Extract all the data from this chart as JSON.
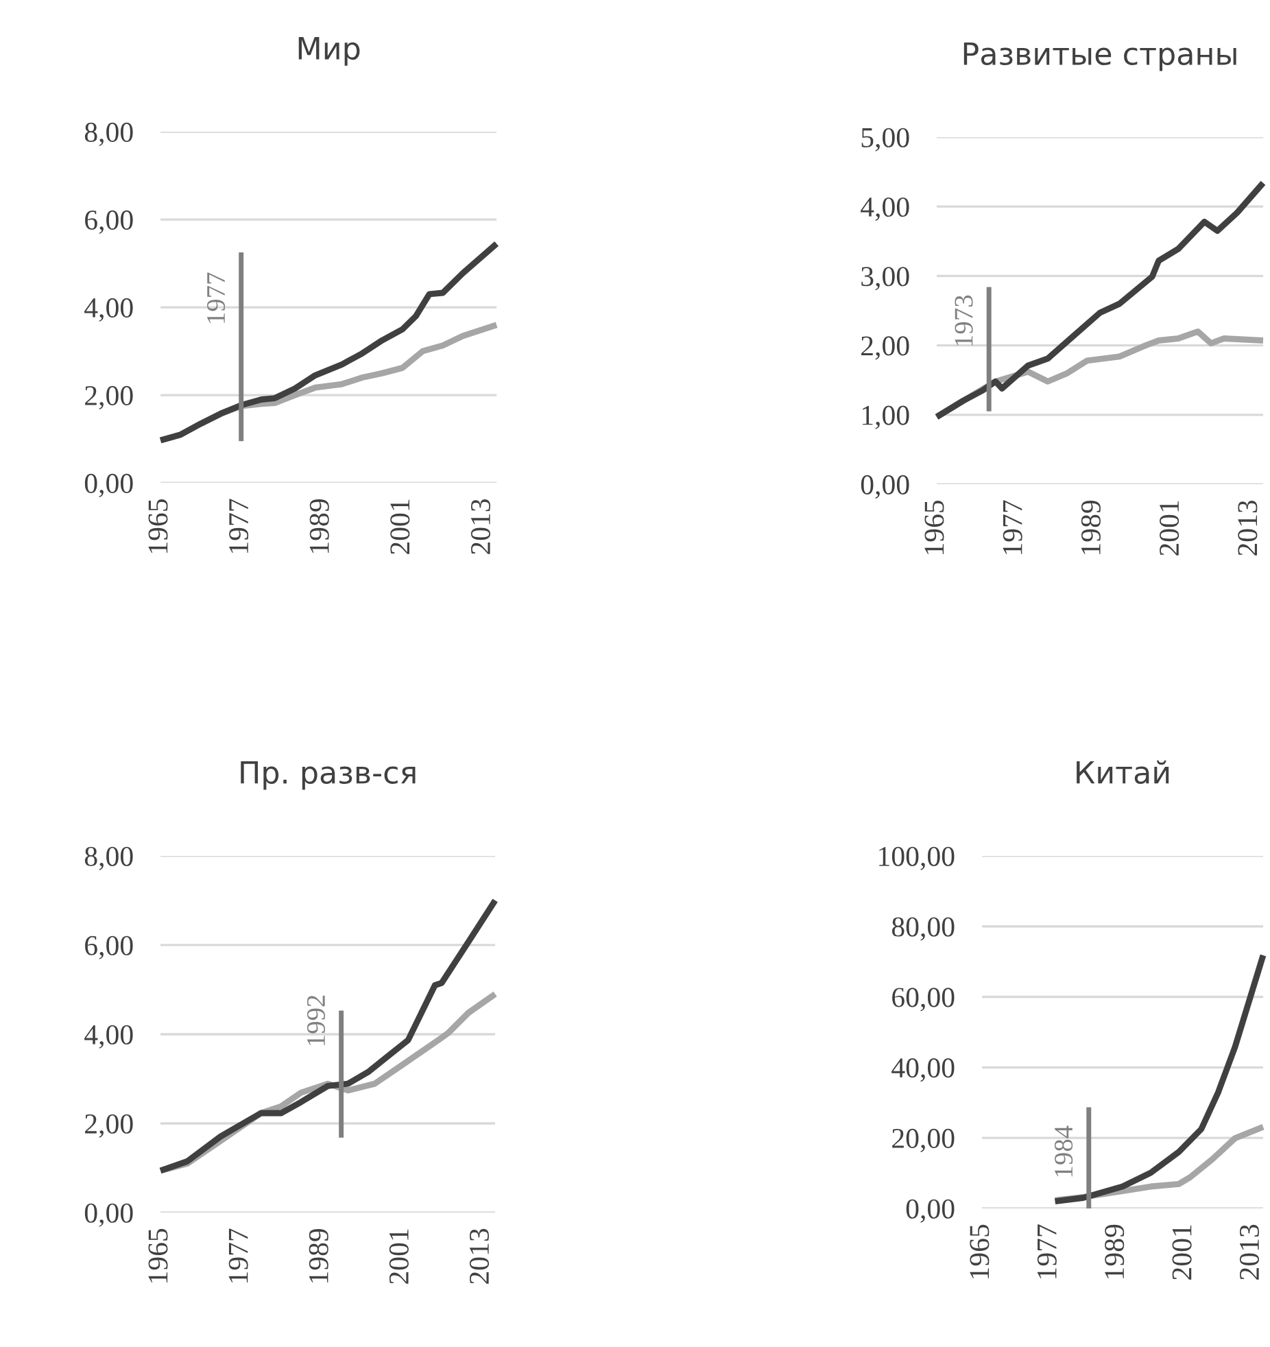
{
  "chart_data": [
    {
      "type": "line",
      "title": "Мир",
      "xlim": [
        1965,
        2015
      ],
      "xticks": [
        1965,
        1977,
        1989,
        2001,
        2013
      ],
      "ylim": [
        0,
        8
      ],
      "yticks": [
        {
          "value": 0,
          "label": "0,00"
        },
        {
          "value": 2,
          "label": "2,00"
        },
        {
          "value": 4,
          "label": "4,00"
        },
        {
          "value": 6,
          "label": "6,00"
        },
        {
          "value": 8,
          "label": "8,00"
        }
      ],
      "grid": "y",
      "series": [
        {
          "color": "#a6a6a6",
          "x": [
            1965,
            1968,
            1971,
            1974,
            1977,
            1980,
            1982,
            1985,
            1988,
            1992,
            1995,
            1998,
            2001,
            2004,
            2007,
            2010,
            2015
          ],
          "values": [
            0.97,
            1.1,
            1.35,
            1.58,
            1.75,
            1.8,
            1.82,
            2.0,
            2.17,
            2.25,
            2.4,
            2.5,
            2.62,
            3.0,
            3.13,
            3.35,
            3.6
          ]
        },
        {
          "color": "#404040",
          "x": [
            1965,
            1968,
            1971,
            1974,
            1977,
            1980,
            1982,
            1985,
            1988,
            1992,
            1995,
            1998,
            2001,
            2003,
            2005,
            2007,
            2010,
            2015
          ],
          "values": [
            0.97,
            1.1,
            1.35,
            1.58,
            1.77,
            1.9,
            1.93,
            2.15,
            2.45,
            2.7,
            2.95,
            3.25,
            3.5,
            3.8,
            4.3,
            4.33,
            4.78,
            5.45
          ]
        },
        {
          "color": "#7f7f7f",
          "x": [
            1977,
            1977
          ],
          "values": [
            0.95,
            5.25
          ]
        }
      ],
      "annotations": [
        {
          "text": "1977",
          "x": 1977,
          "y": 4.2
        }
      ]
    },
    {
      "type": "line",
      "title": "Развитые страны",
      "xlim": [
        1965,
        2015
      ],
      "xticks": [
        1965,
        1977,
        1989,
        2001,
        2013
      ],
      "ylim": [
        0,
        5
      ],
      "yticks": [
        {
          "value": 0,
          "label": "0,00"
        },
        {
          "value": 1,
          "label": "1,00"
        },
        {
          "value": 2,
          "label": "2,00"
        },
        {
          "value": 3,
          "label": "3,00"
        },
        {
          "value": 4,
          "label": "4,00"
        },
        {
          "value": 5,
          "label": "5,00"
        }
      ],
      "grid": "y",
      "series": [
        {
          "color": "#a6a6a6",
          "x": [
            1965,
            1969,
            1974,
            1979,
            1982,
            1985,
            1988,
            1993,
            1997,
            1999,
            2002,
            2005,
            2007,
            2009,
            2015
          ],
          "values": [
            0.97,
            1.2,
            1.48,
            1.62,
            1.48,
            1.6,
            1.78,
            1.84,
            2.0,
            2.07,
            2.1,
            2.2,
            2.03,
            2.1,
            2.07
          ]
        },
        {
          "color": "#404040",
          "x": [
            1965,
            1969,
            1972,
            1974,
            1975,
            1979,
            1982,
            1986,
            1990,
            1993,
            1998,
            1999,
            2002,
            2006,
            2008,
            2011,
            2015
          ],
          "values": [
            0.97,
            1.2,
            1.35,
            1.48,
            1.38,
            1.71,
            1.81,
            2.14,
            2.47,
            2.6,
            2.99,
            3.22,
            3.39,
            3.78,
            3.65,
            3.91,
            4.34
          ]
        },
        {
          "color": "#7f7f7f",
          "x": [
            1973,
            1973
          ],
          "values": [
            1.05,
            2.84
          ]
        }
      ],
      "annotations": [
        {
          "text": "1973",
          "x": 1973,
          "y": 2.35
        }
      ]
    },
    {
      "type": "line",
      "title": "Пр. разв-ся",
      "xlim": [
        1965,
        2015
      ],
      "xticks": [
        1965,
        1977,
        1989,
        2001,
        2013
      ],
      "ylim": [
        0,
        8
      ],
      "yticks": [
        {
          "value": 0,
          "label": "0,00"
        },
        {
          "value": 2,
          "label": "2,00"
        },
        {
          "value": 4,
          "label": "4,00"
        },
        {
          "value": 6,
          "label": "6,00"
        },
        {
          "value": 8,
          "label": "8,00"
        }
      ],
      "grid": "y",
      "series": [
        {
          "color": "#a6a6a6",
          "x": [
            1965,
            1969,
            1974,
            1980,
            1983,
            1986,
            1990,
            1993,
            1997,
            2001,
            2007,
            2008,
            2011,
            2015
          ],
          "values": [
            0.94,
            1.1,
            1.61,
            2.23,
            2.38,
            2.69,
            2.89,
            2.74,
            2.89,
            3.3,
            3.92,
            4.03,
            4.48,
            4.9
          ]
        },
        {
          "color": "#404040",
          "x": [
            1965,
            1969,
            1974,
            1980,
            1983,
            1986,
            1990,
            1993,
            1996,
            1999,
            2002,
            2006,
            2007,
            2011,
            2015
          ],
          "values": [
            0.94,
            1.15,
            1.71,
            2.23,
            2.23,
            2.48,
            2.84,
            2.89,
            3.15,
            3.51,
            3.87,
            5.1,
            5.15,
            6.07,
            7.0
          ]
        },
        {
          "color": "#7f7f7f",
          "x": [
            1992,
            1992
          ],
          "values": [
            1.68,
            4.53
          ]
        }
      ],
      "annotations": [
        {
          "text": "1992",
          "x": 1992,
          "y": 4.3
        }
      ]
    },
    {
      "type": "line",
      "title": "Китай",
      "xlim": [
        1965,
        2015
      ],
      "xticks": [
        1965,
        1977,
        1989,
        2001,
        2013
      ],
      "ylim": [
        0,
        100
      ],
      "yticks": [
        {
          "value": 0,
          "label": "0,00"
        },
        {
          "value": 20,
          "label": "20,00"
        },
        {
          "value": 40,
          "label": "40,00"
        },
        {
          "value": 60,
          "label": "60,00"
        },
        {
          "value": 80,
          "label": "80,00"
        },
        {
          "value": 100,
          "label": "100,00"
        }
      ],
      "grid": "y",
      "series": [
        {
          "color": "#a6a6a6",
          "x": [
            1978,
            1983,
            1990,
            1995,
            2000,
            2002,
            2006,
            2010,
            2015
          ],
          "values": [
            2.3,
            3.2,
            4.9,
            6.2,
            6.9,
            8.8,
            14,
            19.9,
            23.1
          ]
        },
        {
          "color": "#404040",
          "x": [
            1978,
            1983,
            1990,
            1995,
            2000,
            2004,
            2007,
            2010,
            2015
          ],
          "values": [
            2,
            3.0,
            6.2,
            10.1,
            16,
            22.5,
            32.9,
            45.8,
            71.8
          ]
        },
        {
          "color": "#7f7f7f",
          "x": [
            1984,
            1984
          ],
          "values": [
            0,
            28.7
          ]
        }
      ],
      "annotations": [
        {
          "text": "1984",
          "x": 1984,
          "y": 16
        }
      ]
    }
  ]
}
